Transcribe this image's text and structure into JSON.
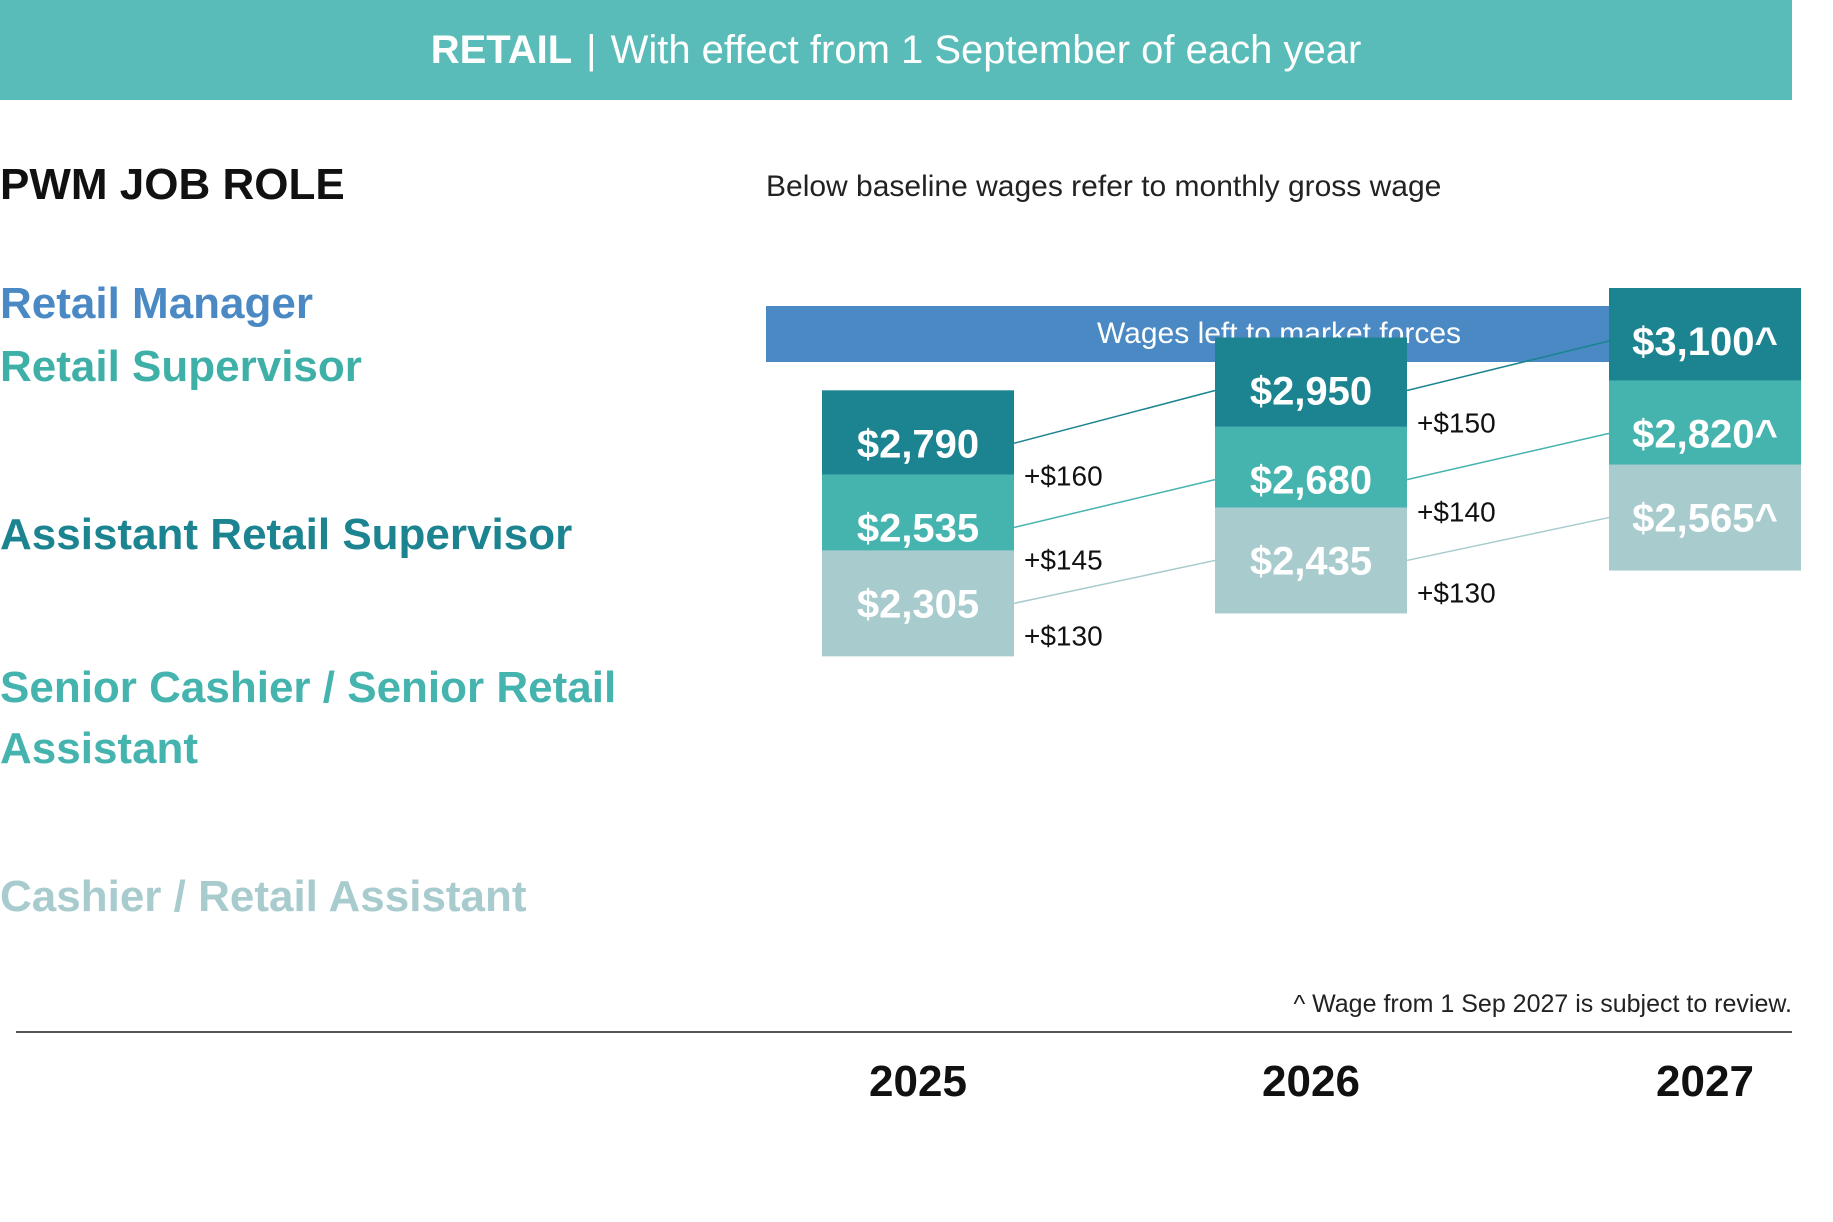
{
  "header": {
    "sector": "RETAIL",
    "separator": "|",
    "effect_text": "With effect from 1 September of each year"
  },
  "role_heading": "PWM JOB ROLE",
  "baseline_note": "Below baseline wages refer to monthly gross wage",
  "roles": [
    {
      "label": "Retail Manager",
      "color": "#4a89c4"
    },
    {
      "label": "Retail Supervisor",
      "color": "#3fb0a7"
    },
    {
      "label": "Assistant Retail Supervisor",
      "color": "#1b8490"
    },
    {
      "label": "Senior Cashier / Senior Retail",
      "color": "#45b3ae"
    },
    {
      "label": "Assistant",
      "color": "#45b3ae"
    },
    {
      "label": "Cashier / Retail Assistant",
      "color": "#a8cbce"
    }
  ],
  "market_forces_label": "Wages left to market forces",
  "footnote": "^ Wage from 1 Sep 2027 is subject to review.",
  "chart_data": {
    "type": "table",
    "categories": [
      "2025",
      "2026",
      "2027"
    ],
    "series": [
      {
        "name": "Assistant Retail Supervisor",
        "values": [
          2790,
          2950,
          3100
        ],
        "labels": [
          "$2,790",
          "$2,950",
          "$3,100^"
        ],
        "increments": [
          "+$160",
          "+$150"
        ],
        "color": "#1b8490"
      },
      {
        "name": "Senior Cashier / Senior Retail Assistant",
        "values": [
          2535,
          2680,
          2820
        ],
        "labels": [
          "$2,535",
          "$2,680",
          "$2,820^"
        ],
        "increments": [
          "+$145",
          "+$140"
        ],
        "color": "#45b3ae"
      },
      {
        "name": "Cashier / Retail Assistant",
        "values": [
          2305,
          2435,
          2565
        ],
        "labels": [
          "$2,305",
          "$2,435",
          "$2,565^"
        ],
        "increments": [
          "+$130",
          "+$130"
        ],
        "color": "#a8cbce"
      }
    ]
  }
}
